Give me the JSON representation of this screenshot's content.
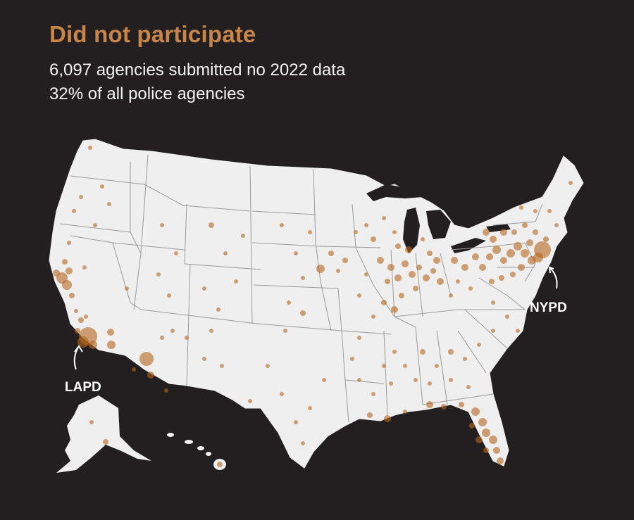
{
  "title": "Did not participate",
  "subtitle_lines": [
    "6,097 agencies submitted no 2022 data",
    "32% of all police agencies"
  ],
  "annotations": {
    "lapd": "LAPD",
    "nypd": "NYPD"
  },
  "colors": {
    "background": "#231f20",
    "title": "#c8854a",
    "land": "#efefef",
    "borders": "#9a9a9a",
    "dots": "#b5651d"
  }
}
